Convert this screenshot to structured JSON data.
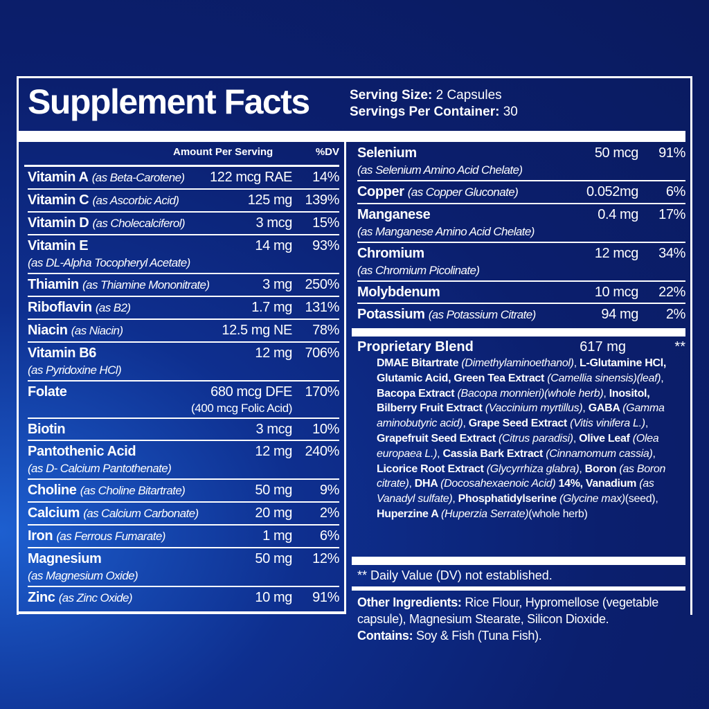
{
  "title": "Supplement Facts",
  "serving": [
    {
      "label": "Serving Size:",
      "value": "2 Capsules"
    },
    {
      "label": "Servings Per Container:",
      "value": "30"
    }
  ],
  "header": {
    "amount": "Amount Per Serving",
    "dv": "%DV"
  },
  "left_rows": [
    {
      "name": "Vitamin A",
      "source": "(as Beta-Carotene)",
      "amount": "122 mcg RAE",
      "dv": "14%"
    },
    {
      "name": "Vitamin C",
      "source": "(as Ascorbic Acid)",
      "amount": "125 mg",
      "dv": "139%"
    },
    {
      "name": "Vitamin D",
      "source": "(as Cholecalciferol)",
      "amount": "3 mcg",
      "dv": "15%"
    },
    {
      "name": "Vitamin E",
      "source": "(as DL-Alpha Tocopheryl Acetate)",
      "amount": "14 mg",
      "dv": "93%"
    },
    {
      "name": "Thiamin",
      "source": "(as Thiamine Mononitrate)",
      "amount": "3 mg",
      "dv": "250%"
    },
    {
      "name": "Riboflavin",
      "source": "(as B2)",
      "amount": "1.7 mg",
      "dv": "131%"
    },
    {
      "name": "Niacin",
      "source": "(as Niacin)",
      "amount": "12.5 mg NE",
      "dv": "78%"
    },
    {
      "name": "Vitamin B6",
      "source": "(as Pyridoxine HCl)",
      "amount": "12 mg",
      "dv": "706%"
    },
    {
      "name": "Folate",
      "amount": "680 mcg DFE",
      "amount_note": "(400 mcg Folic Acid)",
      "dv": "170%"
    },
    {
      "name": "Biotin",
      "amount": "3 mcg",
      "dv": "10%"
    },
    {
      "name": "Pantothenic Acid",
      "source": "(as D- Calcium Pantothenate)",
      "amount": "12 mg",
      "dv": "240%"
    },
    {
      "name": "Choline",
      "source": "(as Choline Bitartrate)",
      "amount": "50 mg",
      "dv": "9%"
    },
    {
      "name": "Calcium",
      "source": "(as Calcium Carbonate)",
      "amount": "20 mg",
      "dv": "2%"
    },
    {
      "name": "Iron",
      "source": "(as Ferrous Fumarate)",
      "amount": "1 mg",
      "dv": "6%"
    },
    {
      "name": "Magnesium",
      "source": "(as Magnesium Oxide)",
      "amount": "50 mg",
      "dv": "12%"
    },
    {
      "name": "Zinc",
      "source": "(as Zinc Oxide)",
      "amount": "10 mg",
      "dv": "91%"
    }
  ],
  "right_rows": [
    {
      "name": "Selenium",
      "source": "(as Selenium Amino Acid Chelate)",
      "amount": "50 mcg",
      "dv": "91%"
    },
    {
      "name": "Copper",
      "source": "(as Copper Gluconate)",
      "amount": "0.052mg",
      "dv": "6%"
    },
    {
      "name": "Manganese",
      "source": "(as Manganese Amino Acid Chelate)",
      "amount": "0.4 mg",
      "dv": "17%"
    },
    {
      "name": "Chromium",
      "source": "(as Chromium Picolinate)",
      "amount": "12 mcg",
      "dv": "34%"
    },
    {
      "name": "Molybdenum",
      "amount": "10 mcg",
      "dv": "22%"
    },
    {
      "name": "Potassium",
      "source": "(as Potassium Citrate)",
      "amount": "94 mg",
      "dv": "2%"
    }
  ],
  "blend": {
    "name": "Proprietary Blend",
    "amount": "617 mg",
    "dv": "**",
    "ingredients": [
      {
        "text": "DMAE Bitartrate ",
        "style": "bold"
      },
      {
        "text": "(Dimethylaminoethanol)",
        "style": "italic"
      },
      {
        "text": ", ",
        "style": "normal"
      },
      {
        "text": "L-Glutamine HCl, Glutamic Acid, Green Tea Extract ",
        "style": "bold"
      },
      {
        "text": "(Camellia sinensis)(leaf)",
        "style": "italic"
      },
      {
        "text": ", ",
        "style": "normal"
      },
      {
        "text": "Bacopa Extract ",
        "style": "bold"
      },
      {
        "text": "(Bacopa monnieri)(whole herb)",
        "style": "italic"
      },
      {
        "text": ", ",
        "style": "normal"
      },
      {
        "text": "Inositol, Bilberry Fruit Extract ",
        "style": "bold"
      },
      {
        "text": "(Vaccinium myrtillus)",
        "style": "italic"
      },
      {
        "text": ", ",
        "style": "normal"
      },
      {
        "text": "GABA ",
        "style": "bold"
      },
      {
        "text": "(Gamma aminobutyric acid)",
        "style": "italic"
      },
      {
        "text": ", ",
        "style": "normal"
      },
      {
        "text": "Grape Seed Extract ",
        "style": "bold"
      },
      {
        "text": "(Vitis vinifera L.)",
        "style": "italic"
      },
      {
        "text": ", ",
        "style": "normal"
      },
      {
        "text": "Grapefruit Seed Extract ",
        "style": "bold"
      },
      {
        "text": "(Citrus paradisi)",
        "style": "italic"
      },
      {
        "text": ", ",
        "style": "normal"
      },
      {
        "text": "Olive Leaf ",
        "style": "bold"
      },
      {
        "text": "(Olea europaea L.)",
        "style": "italic"
      },
      {
        "text": ", ",
        "style": "normal"
      },
      {
        "text": "Cassia Bark Extract ",
        "style": "bold"
      },
      {
        "text": "(Cinnamomum cassia)",
        "style": "italic"
      },
      {
        "text": ", ",
        "style": "normal"
      },
      {
        "text": "Licorice Root Extract ",
        "style": "bold"
      },
      {
        "text": "(Glycyrrhiza glabra)",
        "style": "italic"
      },
      {
        "text": ", ",
        "style": "normal"
      },
      {
        "text": "Boron ",
        "style": "bold"
      },
      {
        "text": "(as Boron citrate)",
        "style": "italic"
      },
      {
        "text": ", ",
        "style": "normal"
      },
      {
        "text": "DHA ",
        "style": "bold"
      },
      {
        "text": "(Docosahexaenoic Acid) ",
        "style": "italic"
      },
      {
        "text": "14%, Vanadium ",
        "style": "bold"
      },
      {
        "text": "(as Vanadyl sulfate)",
        "style": "italic"
      },
      {
        "text": ", ",
        "style": "normal"
      },
      {
        "text": "Phosphatidylserine ",
        "style": "bold"
      },
      {
        "text": "(Glycine max)",
        "style": "italic"
      },
      {
        "text": "(seed), ",
        "style": "normal"
      },
      {
        "text": "Huperzine A ",
        "style": "bold"
      },
      {
        "text": "(Huperzia Serrate)",
        "style": "italic"
      },
      {
        "text": "(whole herb)",
        "style": "normal"
      }
    ]
  },
  "footnote": "** Daily Value (DV) not established.",
  "other": [
    {
      "label": "Other Ingredients:",
      "text": "Rice Flour, Hypromellose (vegetable capsule), Magnesium Stearate, Silicon Dioxide."
    },
    {
      "label": "Contains:",
      "text": "Soy & Fish (Tuna Fish)."
    }
  ]
}
